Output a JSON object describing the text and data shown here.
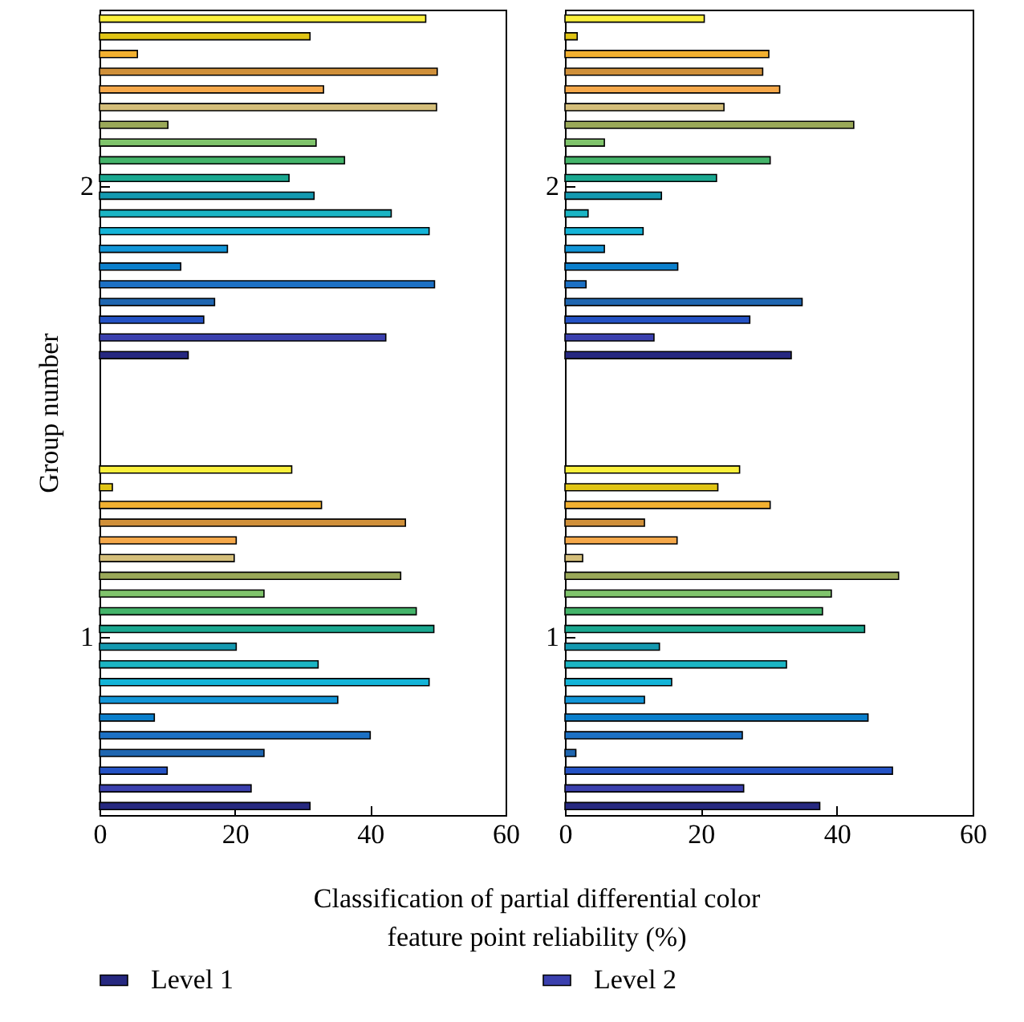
{
  "chart_data": [
    {
      "type": "bar",
      "orientation": "horizontal",
      "categories": [
        "2",
        "1"
      ],
      "xlabel": "Classification of partial differential color\nfeature point reliability (%)",
      "ylabel": "Group number",
      "xlim": [
        0,
        60
      ],
      "xticks": [
        0,
        20,
        40,
        60
      ],
      "legend": "bottom",
      "series": [
        {
          "name": "Level 1",
          "color": "#262880",
          "values": [
            13.1,
            31.1
          ]
        },
        {
          "name": "Level 2",
          "color": "#3b40ae",
          "values": [
            42.3,
            22.4
          ]
        },
        {
          "color": "#2452c4",
          "values": [
            15.4,
            10.0
          ]
        },
        {
          "color": "#1f66b0",
          "values": [
            17.0,
            24.3
          ]
        },
        {
          "color": "#1c70c4",
          "values": [
            49.5,
            40.0
          ]
        },
        {
          "color": "#0a7fcc",
          "values": [
            12.0,
            8.1
          ]
        },
        {
          "color": "#1296d8",
          "values": [
            18.9,
            35.2
          ]
        },
        {
          "color": "#14b4d8",
          "values": [
            48.7,
            48.7
          ]
        },
        {
          "color": "#1bb5c4",
          "values": [
            43.1,
            32.3
          ]
        },
        {
          "color": "#1499b0",
          "values": [
            31.7,
            20.2
          ]
        },
        {
          "color": "#1aa890",
          "values": [
            28.0,
            49.4
          ]
        },
        {
          "color": "#44b46a",
          "values": [
            36.2,
            46.8
          ]
        },
        {
          "color": "#80c46c",
          "values": [
            32.0,
            24.3
          ]
        },
        {
          "color": "#9aa858",
          "values": [
            10.1,
            44.5
          ]
        },
        {
          "color": "#d4be7a",
          "values": [
            49.8,
            19.9
          ]
        },
        {
          "color": "#f5a84a",
          "values": [
            33.1,
            20.2
          ]
        },
        {
          "color": "#d0903a",
          "values": [
            49.9,
            45.2
          ]
        },
        {
          "color": "#f2b030",
          "values": [
            5.6,
            32.8
          ]
        },
        {
          "color": "#e0c414",
          "values": [
            31.1,
            1.9
          ]
        },
        {
          "color": "#faf03c",
          "values": [
            48.2,
            28.4
          ]
        }
      ]
    },
    {
      "type": "bar",
      "orientation": "horizontal",
      "categories": [
        "2",
        "1"
      ],
      "xlim": [
        0,
        60
      ],
      "xticks": [
        0,
        20,
        40,
        60
      ],
      "series": [
        {
          "color": "#262880",
          "values": [
            33.3,
            37.5
          ]
        },
        {
          "color": "#3b40ae",
          "values": [
            13.1,
            26.3
          ]
        },
        {
          "color": "#2452c4",
          "values": [
            27.2,
            48.2
          ]
        },
        {
          "color": "#1f66b0",
          "values": [
            34.9,
            1.6
          ]
        },
        {
          "color": "#1c70c4",
          "values": [
            3.1,
            26.1
          ]
        },
        {
          "color": "#0a7fcc",
          "values": [
            16.6,
            44.6
          ]
        },
        {
          "color": "#1296d8",
          "values": [
            5.8,
            11.7
          ]
        },
        {
          "color": "#14b4d8",
          "values": [
            11.5,
            15.7
          ]
        },
        {
          "color": "#1bb5c4",
          "values": [
            3.4,
            32.6
          ]
        },
        {
          "color": "#1499b0",
          "values": [
            14.2,
            13.9
          ]
        },
        {
          "color": "#1aa890",
          "values": [
            22.3,
            44.1
          ]
        },
        {
          "color": "#44b46a",
          "values": [
            30.2,
            37.9
          ]
        },
        {
          "color": "#80c46c",
          "values": [
            5.8,
            39.2
          ]
        },
        {
          "color": "#9aa858",
          "values": [
            42.5,
            49.1
          ]
        },
        {
          "color": "#d4be7a",
          "values": [
            23.4,
            2.6
          ]
        },
        {
          "color": "#f5a84a",
          "values": [
            31.6,
            16.5
          ]
        },
        {
          "color": "#d0903a",
          "values": [
            29.1,
            11.7
          ]
        },
        {
          "color": "#f2b030",
          "values": [
            30.0,
            30.2
          ]
        },
        {
          "color": "#e0c414",
          "values": [
            1.8,
            22.5
          ]
        },
        {
          "color": "#faf03c",
          "values": [
            20.5,
            25.7
          ]
        }
      ]
    }
  ]
}
